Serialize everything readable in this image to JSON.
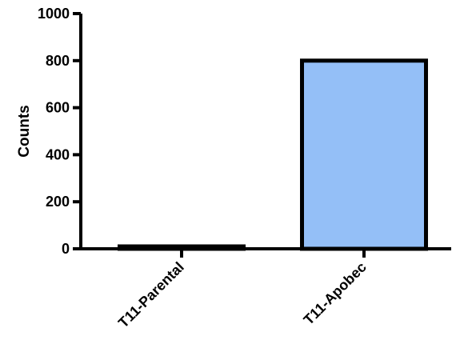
{
  "chart_data": {
    "type": "bar",
    "categories": [
      "T11-Parental",
      "T11-Apobec"
    ],
    "values": [
      4,
      800
    ],
    "xlabel": "",
    "ylabel": "Counts",
    "ylim": [
      0,
      1000
    ],
    "yticks": [
      0,
      200,
      400,
      600,
      800,
      1000
    ],
    "ytick_labels": [
      "0",
      "200",
      "400",
      "600",
      "800",
      "1000"
    ],
    "grid": false,
    "legend": "none",
    "bar_colors": [
      "#ffffff",
      "#94bff7"
    ],
    "edge_color": "#000000"
  }
}
